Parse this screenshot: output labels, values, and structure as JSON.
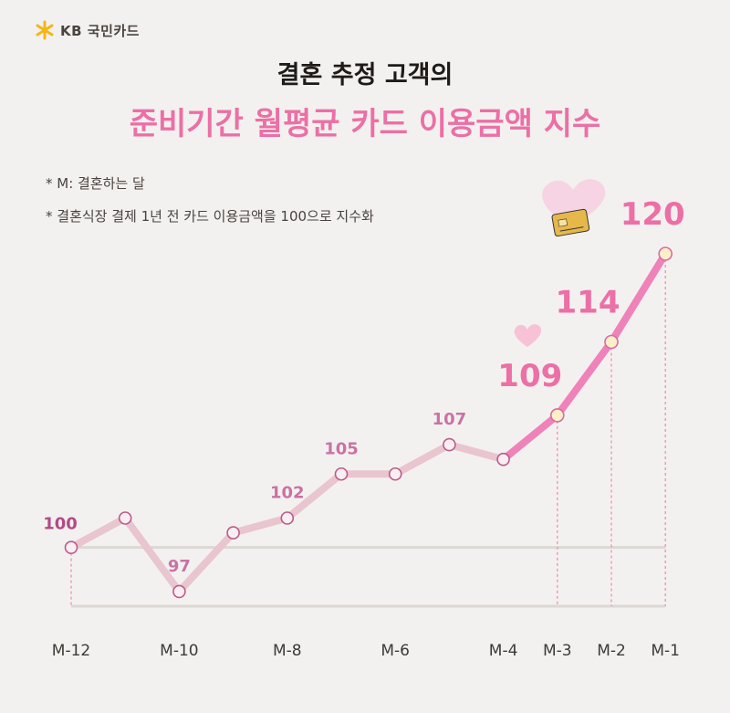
{
  "brand": {
    "name": "KB 국민카드"
  },
  "titles": {
    "line1": "결혼 추정 고객의",
    "line2": "준비기간 월평균 카드 이용금액 지수"
  },
  "notes": [
    "* M: 결혼하는 달",
    "* 결혼식장 결제 1년 전 카드 이용금액을 100으로 지수화"
  ],
  "colors": {
    "accent": "#ec6fa6",
    "label_dark": "#b24a86",
    "label_mid": "#c873a4",
    "line_light": "#e9c5cf",
    "line_strong": "#ef82b8",
    "baseline": "#dcd8d5"
  },
  "icons": [
    "kb-star-icon",
    "heart-card-icon",
    "small-heart-icon"
  ],
  "chart_data": {
    "type": "line",
    "title": "준비기간 월평균 카드 이용금액 지수",
    "x": [
      "M-12",
      "M-11",
      "M-10",
      "M-9",
      "M-8",
      "M-7",
      "M-6",
      "M-5",
      "M-4",
      "M-3",
      "M-2",
      "M-1"
    ],
    "y": [
      100,
      102,
      97,
      101,
      102,
      105,
      105,
      107,
      106,
      109,
      114,
      120
    ],
    "tick_labels": [
      "M-12",
      "M-10",
      "M-8",
      "M-6",
      "M-4",
      "M-3",
      "M-2",
      "M-1"
    ],
    "data_labels": [
      {
        "x": "M-12",
        "text": "100"
      },
      {
        "x": "M-10",
        "text": "97"
      },
      {
        "x": "M-8",
        "text": "102"
      },
      {
        "x": "M-7",
        "text": "105"
      },
      {
        "x": "M-5",
        "text": "107"
      },
      {
        "x": "M-3",
        "text": "109"
      },
      {
        "x": "M-2",
        "text": "114"
      },
      {
        "x": "M-1",
        "text": "120"
      }
    ],
    "ylim": [
      96,
      120
    ],
    "reference_line": 100,
    "grid": false,
    "legend": "none"
  }
}
